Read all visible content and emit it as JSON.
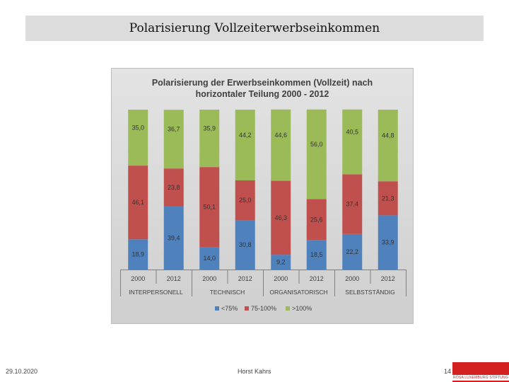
{
  "slide": {
    "title": "Polarisierung Vollzeiterwerbseinkommen",
    "date": "29.10.2020",
    "author": "Horst Kahrs",
    "page_number": "14",
    "logo_text": "ROSA LUXEMBURG STIFTUNG"
  },
  "chart_data": {
    "type": "bar",
    "stacked": true,
    "title_line1": "Polarisierung der Erwerbseinkommen (Vollzeit) nach",
    "title_line2": "horizontaler Teilung 2000 - 2012",
    "categories": [
      "2000",
      "2012",
      "2000",
      "2012",
      "2000",
      "2012",
      "2000",
      "2012"
    ],
    "groups": [
      "INTERPERSONELL",
      "TECHNISCH",
      "ORGANISATORISCH",
      "SELBSTSTÄNDIG"
    ],
    "series": [
      {
        "name": "<75%",
        "color": "#4f81bd",
        "values": [
          18.9,
          39.4,
          14.0,
          30.8,
          9.2,
          18.5,
          22.2,
          33.9
        ],
        "labels": [
          "18,9",
          "39,4",
          "14,0",
          "30,8",
          "9,2",
          "18,5",
          "22,2",
          "33,9"
        ]
      },
      {
        "name": "75-100%",
        "color": "#c0504d",
        "values": [
          46.1,
          23.8,
          50.1,
          25.0,
          46.3,
          25.6,
          37.4,
          21.3
        ],
        "labels": [
          "46,1",
          "23,8",
          "50,1",
          "25,0",
          "46,3",
          "25,6",
          "37,4",
          "21,3"
        ]
      },
      {
        "name": ">100%",
        "color": "#9bbb59",
        "values": [
          35.0,
          36.7,
          35.9,
          44.2,
          44.6,
          56.0,
          40.5,
          44.8
        ],
        "labels": [
          "35,0",
          "36,7",
          "35,9",
          "44,2",
          "44,6",
          "56,0",
          "40,5",
          "44,8"
        ]
      }
    ],
    "ylim": [
      0,
      100
    ],
    "legend_position": "bottom",
    "grid": false
  }
}
